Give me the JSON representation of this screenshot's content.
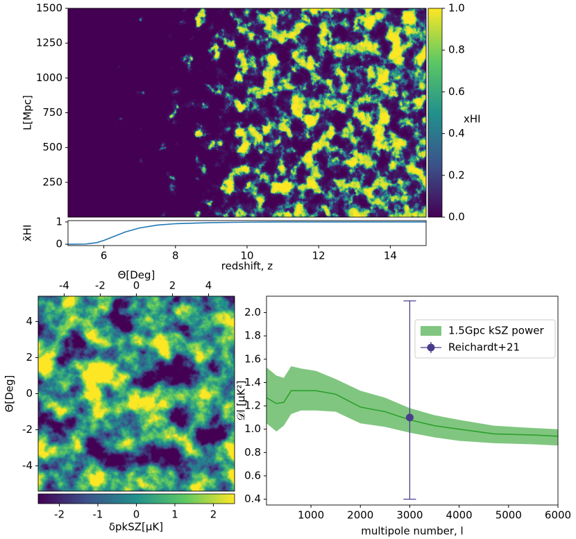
{
  "chart_data": [
    {
      "type": "heatmap",
      "ylabel": "L[Mpc]",
      "ylim": [
        0,
        1500
      ],
      "yticks": [
        250,
        500,
        750,
        1000,
        1250,
        1500
      ],
      "colormap": "viridis",
      "colorbar": {
        "label": "xHI",
        "lim": [
          0,
          1
        ],
        "ticks": [
          {
            "value": 0,
            "label": "0.0"
          },
          0.2,
          0.4,
          0.6,
          0.8,
          {
            "value": 1,
            "label": "1.0"
          }
        ]
      }
    },
    {
      "type": "line",
      "ylabel": "x̄HI",
      "xlabel": "redshift, z",
      "xlim": [
        5,
        15
      ],
      "xticks": [
        6,
        8,
        10,
        12,
        14
      ],
      "ylim": [
        -0.06,
        1.06
      ],
      "yticks": [
        0,
        1
      ],
      "series": [
        {
          "color": "#1f77b4",
          "x": [
            5,
            5.5,
            5.8,
            6,
            6.3,
            6.6,
            7,
            7.5,
            8,
            9,
            10,
            11,
            12,
            13,
            14,
            15
          ],
          "values": [
            0,
            0.01,
            0.07,
            0.17,
            0.36,
            0.55,
            0.73,
            0.86,
            0.92,
            0.97,
            0.99,
            1,
            1,
            1,
            1,
            1
          ]
        }
      ]
    },
    {
      "type": "heatmap",
      "xlabel": "Θ[Deg]",
      "ylabel": "Θ[Deg]",
      "xlim": [
        -5.44,
        5.44
      ],
      "ylim": [
        -5.4,
        5.4
      ],
      "xticks": [
        -4,
        -2,
        0,
        2,
        4
      ],
      "yticks": [
        -4,
        -2,
        0,
        2,
        4
      ],
      "colormap": "viridis",
      "colorbar": {
        "label": "δpkSZ[μK]",
        "lim": [
          -2.55,
          2.55
        ],
        "ticks": [
          -2,
          -1,
          0,
          1,
          2
        ]
      }
    },
    {
      "type": "line",
      "xlabel": "multipole number, l",
      "ylabel": "𝒟l [μK²]",
      "xlim": [
        100,
        6000
      ],
      "xticks": [
        1000,
        2000,
        3000,
        4000,
        5000,
        6000
      ],
      "ylim": [
        0.35,
        2.14
      ],
      "yticks": [
        0.4,
        0.6,
        0.8,
        {
          "value": 1,
          "label": "1.0"
        },
        1.2,
        1.4,
        1.6,
        1.8,
        {
          "value": 2,
          "label": "2.0"
        }
      ],
      "legend": "upper right",
      "series": [
        {
          "name": "1.5Gpc kSZ power",
          "color": "#2ca02c",
          "x": [
            100,
            300,
            450,
            600,
            800,
            1100,
            1500,
            2000,
            2500,
            3000,
            3500,
            4000,
            4700,
            5500,
            6000
          ],
          "values": [
            1.27,
            1.22,
            1.23,
            1.33,
            1.33,
            1.33,
            1.3,
            1.19,
            1.15,
            1.08,
            1.03,
            1.0,
            0.96,
            0.95,
            0.94
          ],
          "upper": [
            1.53,
            1.46,
            1.44,
            1.54,
            1.52,
            1.5,
            1.43,
            1.33,
            1.27,
            1.18,
            1.12,
            1.08,
            1.03,
            1.01,
            1.0
          ],
          "lower": [
            1.05,
            0.98,
            1.03,
            1.13,
            1.16,
            1.16,
            1.15,
            1.05,
            1.02,
            0.97,
            0.93,
            0.9,
            0.88,
            0.87,
            0.86
          ]
        }
      ],
      "points": [
        {
          "name": "Reichardt+21",
          "color": "#483d8b",
          "x": [
            3000
          ],
          "values": [
            1.1
          ],
          "err_low": [
            0.7
          ],
          "err_high": [
            1.0
          ]
        }
      ]
    }
  ]
}
